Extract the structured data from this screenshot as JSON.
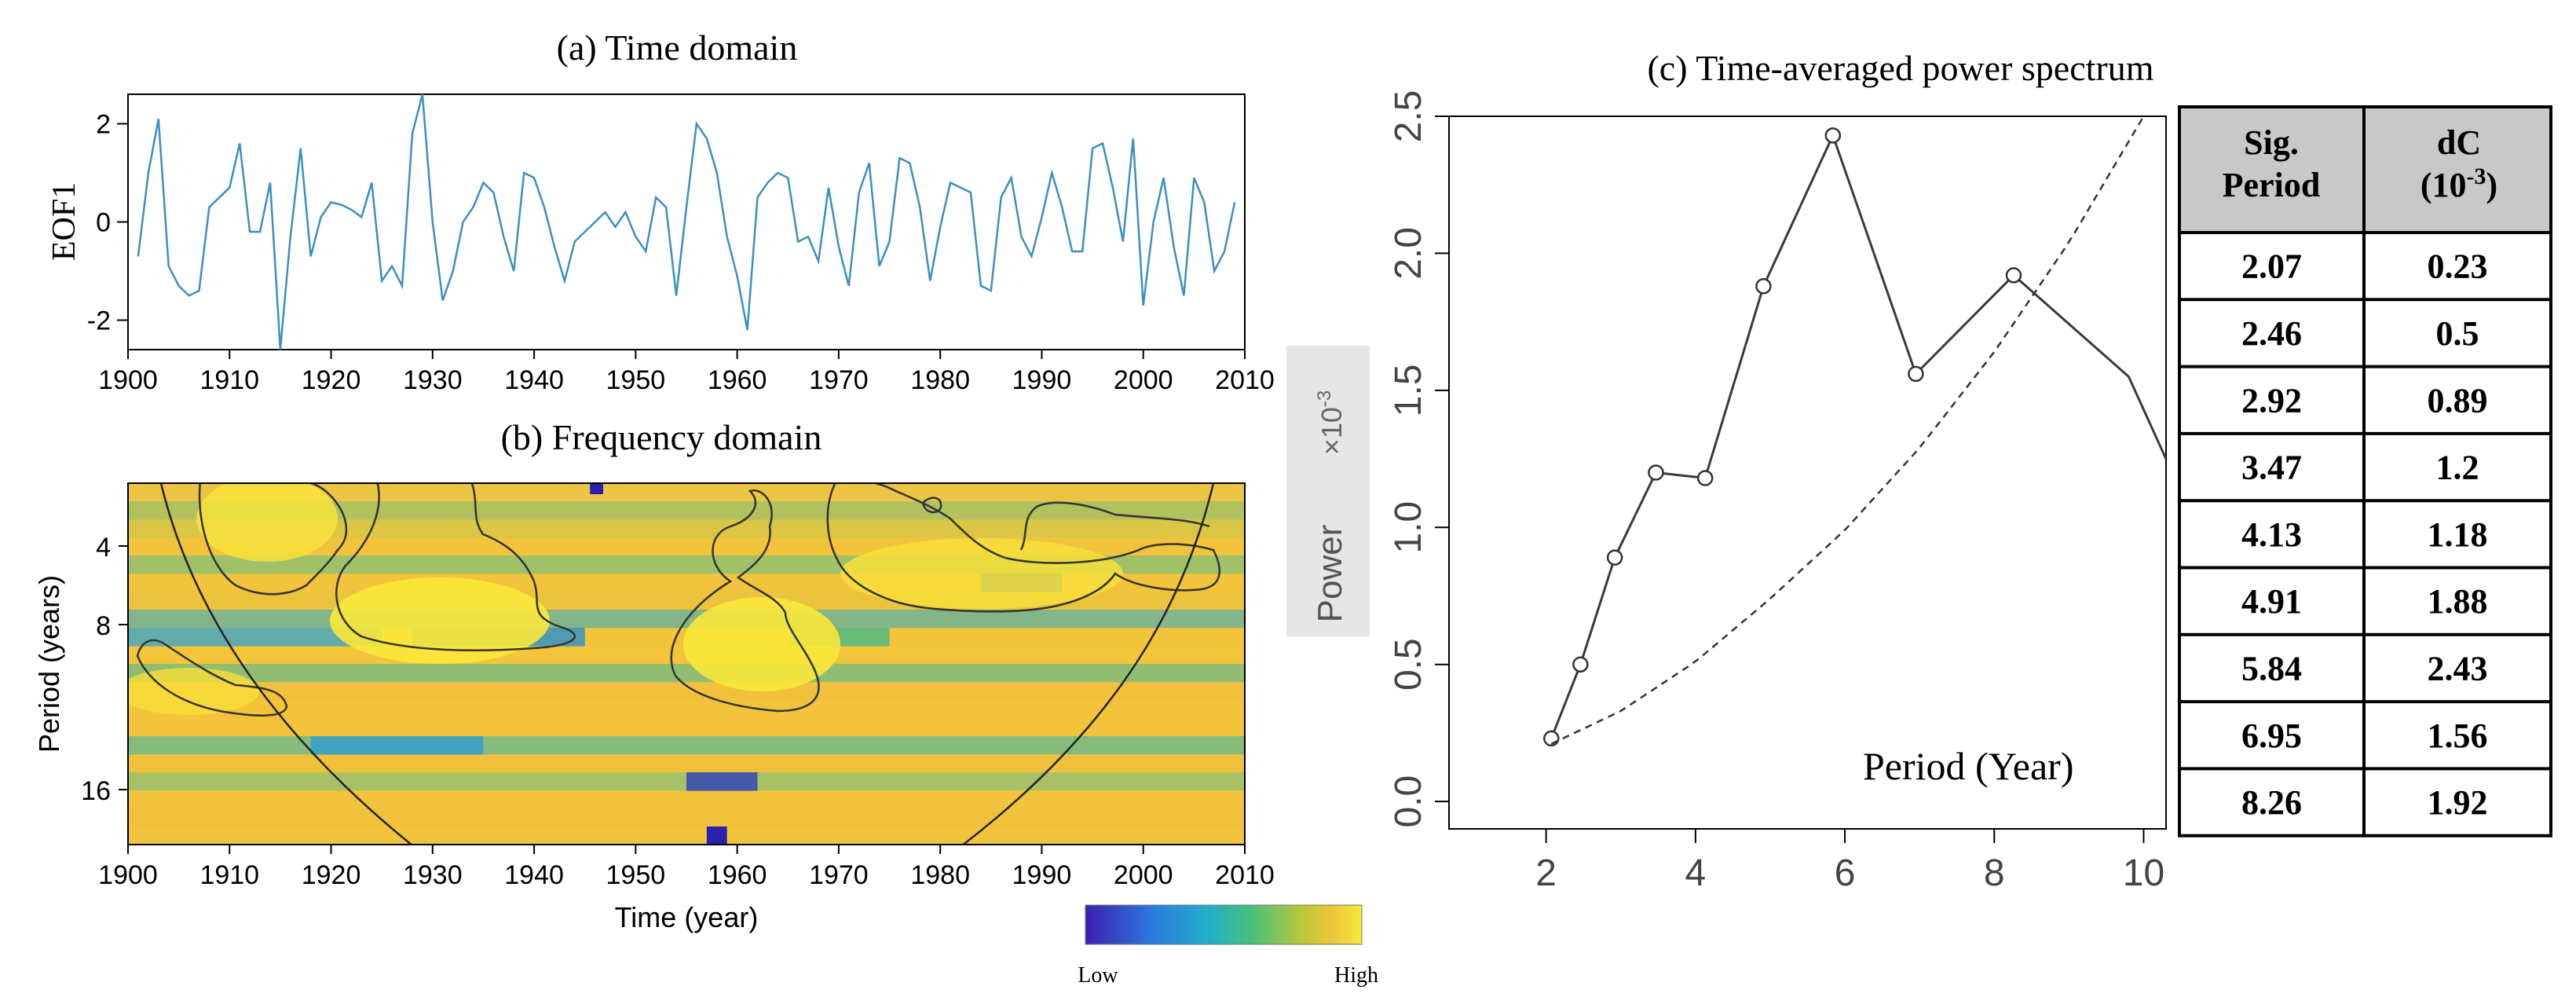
{
  "colors": {
    "series_line": "#3a8fc5",
    "axis": "#000000",
    "spectrum_line": "#3a3a3a",
    "table_header_bg": "#c8c8c8",
    "power_label_bg": "#e6e6e6",
    "cmap_low": "#3b1fb0",
    "cmap_mid": "#2fb59a",
    "cmap_high": "#f5e83a"
  },
  "chart_data": [
    {
      "id": "a",
      "type": "line",
      "title": "(a) Time domain",
      "ylabel": "EOF1",
      "xlabel": "",
      "xlim": [
        1900,
        2010
      ],
      "ylim": [
        -2.6,
        2.6
      ],
      "xticks": [
        "1900",
        "1910",
        "1920",
        "1930",
        "1940",
        "1950",
        "1960",
        "1970",
        "1980",
        "1990",
        "2000",
        "2010"
      ],
      "yticks": [
        "-2",
        "0",
        "2"
      ],
      "x": [
        1901,
        1902,
        1903,
        1904,
        1905,
        1906,
        1907,
        1908,
        1909,
        1910,
        1911,
        1912,
        1913,
        1914,
        1915,
        1916,
        1917,
        1918,
        1919,
        1920,
        1921,
        1922,
        1923,
        1924,
        1925,
        1926,
        1927,
        1928,
        1929,
        1930,
        1931,
        1932,
        1933,
        1934,
        1935,
        1936,
        1937,
        1938,
        1939,
        1940,
        1941,
        1942,
        1943,
        1944,
        1945,
        1946,
        1947,
        1948,
        1949,
        1950,
        1951,
        1952,
        1953,
        1954,
        1955,
        1956,
        1957,
        1958,
        1959,
        1960,
        1961,
        1962,
        1963,
        1964,
        1965,
        1966,
        1967,
        1968,
        1969,
        1970,
        1971,
        1972,
        1973,
        1974,
        1975,
        1976,
        1977,
        1978,
        1979,
        1980,
        1981,
        1982,
        1983,
        1984,
        1985,
        1986,
        1987,
        1988,
        1989,
        1990,
        1991,
        1992,
        1993,
        1994,
        1995,
        1996,
        1997,
        1998,
        1999,
        2000,
        2001,
        2002,
        2003,
        2004,
        2005,
        2006,
        2007,
        2008,
        2009
      ],
      "values": [
        -0.7,
        1.0,
        2.1,
        -0.9,
        -1.3,
        -1.5,
        -1.4,
        0.3,
        0.5,
        0.7,
        1.6,
        -0.2,
        -0.2,
        0.8,
        -2.6,
        -0.3,
        1.5,
        -0.7,
        0.1,
        0.4,
        0.35,
        0.25,
        0.1,
        0.8,
        -1.2,
        -0.9,
        -1.3,
        1.8,
        2.6,
        0.0,
        -1.6,
        -1.0,
        0.0,
        0.3,
        0.8,
        0.6,
        -0.3,
        -1.0,
        1.0,
        0.9,
        0.3,
        -0.5,
        -1.2,
        -0.4,
        -0.2,
        0.0,
        0.2,
        -0.1,
        0.2,
        -0.3,
        -0.6,
        0.5,
        0.3,
        -1.5,
        0.3,
        2.0,
        1.7,
        1.0,
        -0.3,
        -1.1,
        -2.2,
        0.5,
        0.8,
        1.0,
        0.9,
        -0.4,
        -0.3,
        -0.8,
        0.7,
        -0.5,
        -1.3,
        0.6,
        1.2,
        -0.9,
        -0.4,
        1.3,
        1.2,
        0.3,
        -1.2,
        -0.1,
        0.8,
        0.7,
        0.6,
        -1.3,
        -1.4,
        0.5,
        0.9,
        -0.3,
        -0.7,
        0.1,
        1.0,
        0.3,
        -0.6,
        -0.6,
        1.5,
        1.6,
        0.7,
        -0.4,
        1.7,
        -1.7,
        0.0,
        0.9,
        -0.5,
        -1.5,
        0.9,
        0.4,
        -1.0,
        -0.6,
        0.4
      ]
    },
    {
      "id": "b",
      "type": "heatmap",
      "title": "(b) Frequency domain",
      "xlabel": "Time (year)",
      "ylabel": "Period (years)",
      "xlim": [
        1900,
        2010
      ],
      "xticks": [
        "1900",
        "1910",
        "1920",
        "1930",
        "1940",
        "1950",
        "1960",
        "1970",
        "1980",
        "1990",
        "2000",
        "2010"
      ],
      "yticks": [
        "4",
        "8",
        "16"
      ],
      "colorbar_low": "Low",
      "colorbar_high": "High"
    },
    {
      "id": "c",
      "type": "line",
      "title": "(c) Time-averaged power spectrum",
      "xlabel": "Period (Year)",
      "ylabel": "Power",
      "ylabel_scale": "×10",
      "ylabel_exponent": "-3",
      "xlim": [
        0.7,
        10.3
      ],
      "ylim": [
        -0.1,
        2.5
      ],
      "xticks": [
        "2",
        "4",
        "6",
        "8",
        "10"
      ],
      "yticks": [
        "0.0",
        "0.5",
        "1.0",
        "1.5",
        "2.0",
        "2.5"
      ],
      "series": [
        {
          "name": "power",
          "style": "solid-markers",
          "x": [
            2.07,
            2.46,
            2.92,
            3.47,
            4.13,
            4.91,
            5.84,
            6.95,
            8.26,
            9.8,
            10.3
          ],
          "y": [
            0.23,
            0.5,
            0.89,
            1.2,
            1.18,
            1.88,
            2.43,
            1.56,
            1.92,
            1.55,
            1.25
          ]
        },
        {
          "name": "significance",
          "style": "dashed",
          "x": [
            2.07,
            3,
            4,
            5,
            6,
            7,
            8,
            9,
            10
          ],
          "y": [
            0.21,
            0.33,
            0.51,
            0.74,
            0.99,
            1.29,
            1.64,
            2.04,
            2.5
          ]
        }
      ],
      "table": {
        "headers": [
          "Sig. Period",
          "dC (10-3)"
        ],
        "rows": [
          [
            "2.07",
            "0.23"
          ],
          [
            "2.46",
            "0.5"
          ],
          [
            "2.92",
            "0.89"
          ],
          [
            "3.47",
            "1.2"
          ],
          [
            "4.13",
            "1.18"
          ],
          [
            "4.91",
            "1.88"
          ],
          [
            "5.84",
            "2.43"
          ],
          [
            "6.95",
            "1.56"
          ],
          [
            "8.26",
            "1.92"
          ]
        ]
      }
    }
  ]
}
